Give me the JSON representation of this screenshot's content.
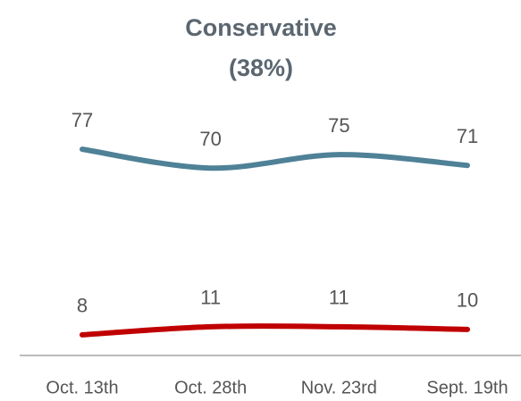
{
  "chart_data": {
    "type": "line",
    "title": "Conservative",
    "subtitle": "(38%)",
    "categories": [
      "Oct. 13th",
      "Oct. 28th",
      "Nov. 23rd",
      "Sept. 19th"
    ],
    "series": [
      {
        "color": "#4f8197",
        "values": [
          77,
          70,
          75,
          71
        ]
      },
      {
        "color": "#c00000",
        "values": [
          8,
          11,
          11,
          10
        ]
      }
    ],
    "ylim": [
      0,
      90
    ]
  }
}
